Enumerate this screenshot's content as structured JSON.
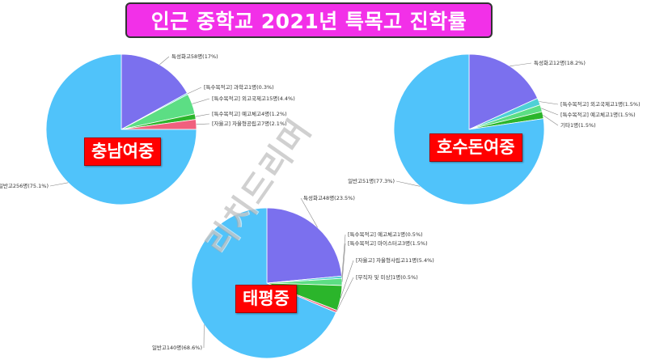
{
  "title": "인근 중학교 2021년 특목고 진학률",
  "watermark": "리치드리머",
  "chart_data": [
    {
      "type": "pie",
      "name": "충남여중",
      "slices": [
        {
          "label": "특성화고58명(17%)",
          "value": 17.0,
          "color": "#7b70ee"
        },
        {
          "label": "[특수목적고] 과학고1명(0.3%)",
          "value": 0.3,
          "color": "#4fd0d6"
        },
        {
          "label": "[특수목적고] 외고국제고15명(4.4%)",
          "value": 4.4,
          "color": "#5cde84"
        },
        {
          "label": "[특수목적고] 예고체고4명(1.2%)",
          "value": 1.2,
          "color": "#2bb52b"
        },
        {
          "label": "[자율고] 자율형공립고7명(2.1%)",
          "value": 2.1,
          "color": "#f0607e"
        },
        {
          "label": "일반고256명(75.1%)",
          "value": 75.1,
          "color": "#50c3fa"
        }
      ]
    },
    {
      "type": "pie",
      "name": "호수돈여중",
      "slices": [
        {
          "label": "특성화고12명(18.2%)",
          "value": 18.2,
          "color": "#7b70ee"
        },
        {
          "label": "[특수목적고] 외고국제고1명(1.5%)",
          "value": 1.5,
          "color": "#4fd0d6"
        },
        {
          "label": "[특수목적고] 예고체고1명(1.5%)",
          "value": 1.5,
          "color": "#5cde84"
        },
        {
          "label": "기타1명(1.5%)",
          "value": 1.5,
          "color": "#2bb52b"
        },
        {
          "label": "일반고51명(77.3%)",
          "value": 77.3,
          "color": "#50c3fa"
        }
      ]
    },
    {
      "type": "pie",
      "name": "태평중",
      "slices": [
        {
          "label": "특성화고48명(23.5%)",
          "value": 23.5,
          "color": "#7b70ee"
        },
        {
          "label": "[특수목적고] 예고체고1명(0.5%)",
          "value": 0.5,
          "color": "#4fd0d6"
        },
        {
          "label": "[특수목적고] 마이스터고3명(1.5%)",
          "value": 1.5,
          "color": "#5cde84"
        },
        {
          "label": "[자율고] 자율형사립고11명(5.4%)",
          "value": 5.4,
          "color": "#2bb52b"
        },
        {
          "label": "[무직자 및 미상]1명(0.5%)",
          "value": 0.5,
          "color": "#f0607e"
        },
        {
          "label": "일반고140명(68.6%)",
          "value": 68.6,
          "color": "#50c3fa"
        }
      ]
    }
  ]
}
